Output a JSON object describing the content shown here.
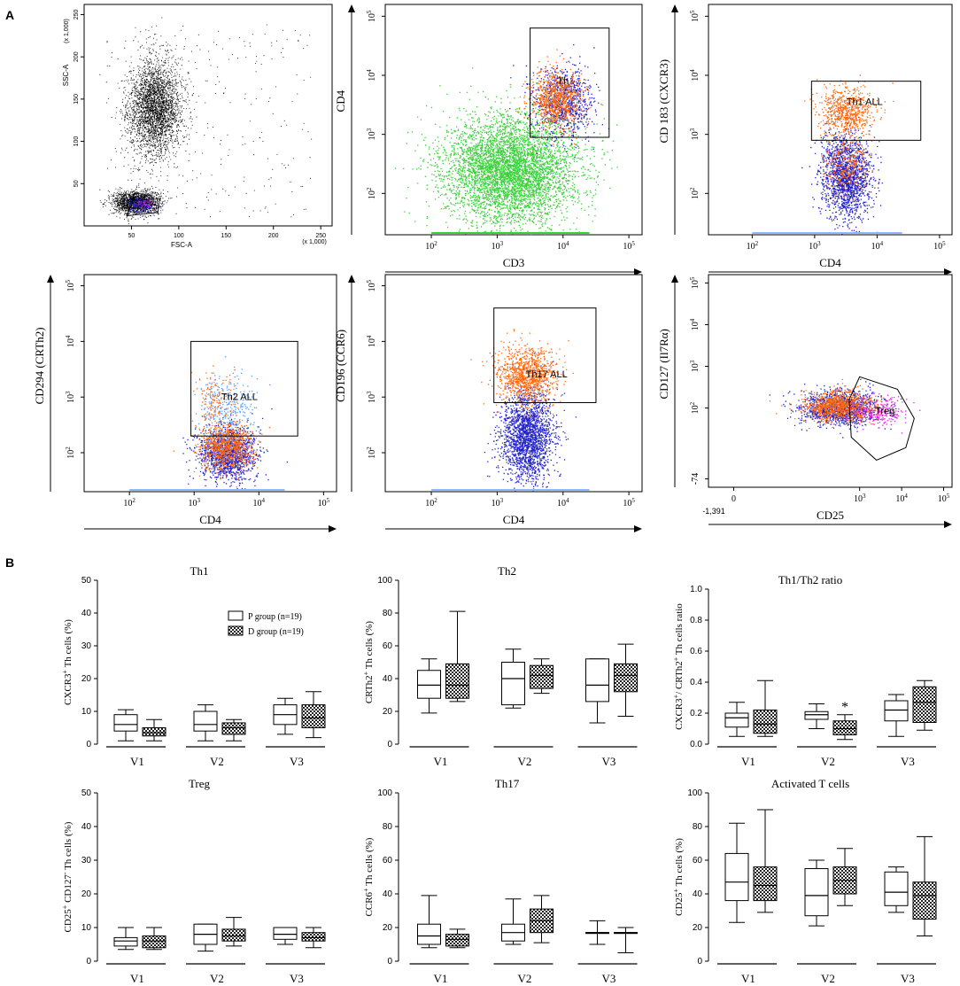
{
  "panel_labels": {
    "a": "A",
    "b": "B"
  },
  "colors": {
    "black": "#000000",
    "green": "#39d139",
    "blue": "#2222cc",
    "orange": "#ff6a10",
    "light_blue": "#5aa0ff",
    "magenta": "#e020e0"
  },
  "chart_data": [
    {
      "type": "scatter",
      "id": "fsc-ssc",
      "xlabel": "FSC-A",
      "ylabel": "SSC-A",
      "x_multiplier": "(x 1,000)",
      "y_multiplier": "(x 1,000)",
      "xlim": [
        0,
        262
      ],
      "ylim": [
        0,
        262
      ],
      "x_ticks": [
        "50",
        "100",
        "150",
        "200",
        "250"
      ],
      "y_ticks": [
        "50",
        "100",
        "150",
        "200",
        "250"
      ],
      "populations": [
        {
          "color": "black",
          "x_center": 75,
          "y_center": 140,
          "n": 3400
        },
        {
          "color": "black",
          "x_center": 55,
          "y_center": 28,
          "n": 1800
        },
        {
          "color": "blue",
          "x_center": 60,
          "y_center": 25,
          "n": 250
        },
        {
          "color": "magenta",
          "x_center": 62,
          "y_center": 28,
          "n": 60
        }
      ],
      "gates": [
        {
          "label": "",
          "shape": "polygon"
        }
      ]
    },
    {
      "type": "scatter",
      "id": "cd3-cd4",
      "scale": "log",
      "xlabel": "CD3",
      "ylabel": "CD4",
      "xlim": [
        1.3,
        5.2
      ],
      "ylim": [
        1.3,
        5.2
      ],
      "tick_labels": [
        "10",
        "10",
        "10",
        "10"
      ],
      "tick_exponents": [
        "2",
        "3",
        "4",
        "5"
      ],
      "populations": [
        {
          "color": "green",
          "x_center": 3.2,
          "y_center": 2.4,
          "n": 5000
        },
        {
          "color": "blue",
          "x_center": 4.0,
          "y_center": 3.55,
          "n": 900
        },
        {
          "color": "orange",
          "x_center": 3.9,
          "y_center": 3.6,
          "n": 900
        }
      ],
      "gates": [
        {
          "label": "Th",
          "x": [
            3.5,
            4.7
          ],
          "y": [
            2.95,
            4.8
          ]
        }
      ]
    },
    {
      "type": "scatter",
      "id": "cd4-cd183",
      "scale": "log",
      "xlabel": "CD4",
      "ylabel": "CD 183 (CXCR3)",
      "xlim": [
        1.3,
        5.2
      ],
      "ylim": [
        1.3,
        5.2
      ],
      "tick_labels": [
        "10",
        "10",
        "10",
        "10"
      ],
      "tick_exponents": [
        "2",
        "3",
        "4",
        "5"
      ],
      "populations": [
        {
          "color": "blue",
          "x_center": 3.5,
          "y_center": 2.3,
          "n": 1700
        },
        {
          "color": "orange",
          "x_center": 3.5,
          "y_center": 2.5,
          "n": 300
        },
        {
          "color": "orange",
          "x_center": 3.5,
          "y_center": 3.4,
          "n": 700
        }
      ],
      "gates": [
        {
          "label": "Th1 ALL",
          "x": [
            2.95,
            4.7
          ],
          "y": [
            2.9,
            3.9
          ]
        }
      ]
    },
    {
      "type": "scatter",
      "id": "cd4-cd294",
      "scale": "log",
      "xlabel": "CD4",
      "ylabel": "CD294 (CRTh2)",
      "xlim": [
        1.3,
        5.2
      ],
      "ylim": [
        1.3,
        5.2
      ],
      "tick_labels": [
        "10",
        "10",
        "10",
        "10"
      ],
      "tick_exponents": [
        "2",
        "3",
        "4",
        "5"
      ],
      "populations": [
        {
          "color": "blue",
          "x_center": 3.5,
          "y_center": 2.0,
          "n": 1400
        },
        {
          "color": "orange",
          "x_center": 3.5,
          "y_center": 2.1,
          "n": 900
        },
        {
          "color": "light_blue",
          "x_center": 3.5,
          "y_center": 2.8,
          "n": 300
        },
        {
          "color": "orange",
          "x_center": 3.3,
          "y_center": 2.9,
          "n": 150
        }
      ],
      "gates": [
        {
          "label": "Th2 ALL",
          "x": [
            2.95,
            4.6
          ],
          "y": [
            2.3,
            4.0
          ]
        }
      ]
    },
    {
      "type": "scatter",
      "id": "cd4-cd196",
      "scale": "log",
      "xlabel": "CD4",
      "ylabel": "CD196 (CCR6)",
      "xlim": [
        1.3,
        5.2
      ],
      "ylim": [
        1.3,
        5.2
      ],
      "tick_labels": [
        "10",
        "10",
        "10",
        "10"
      ],
      "tick_exponents": [
        "2",
        "3",
        "4",
        "5"
      ],
      "populations": [
        {
          "color": "blue",
          "x_center": 3.45,
          "y_center": 2.3,
          "n": 2000
        },
        {
          "color": "orange",
          "x_center": 3.45,
          "y_center": 3.4,
          "n": 1100
        }
      ],
      "gates": [
        {
          "label": "Th17 ALL",
          "x": [
            2.95,
            4.5
          ],
          "y": [
            2.9,
            4.6
          ]
        }
      ]
    },
    {
      "type": "scatter",
      "id": "cd25-cd127",
      "scale": "biexponential",
      "xlabel": "CD25",
      "ylabel": "CD127 (Il7Rα)",
      "xlim": [
        -0.6,
        5.2
      ],
      "ylim": [
        0.1,
        5.2
      ],
      "x_tick_labels": [
        "0",
        "10",
        "10",
        "10"
      ],
      "x_tick_exponents": [
        "",
        "3",
        "4",
        "5"
      ],
      "x_min_label": "-1,391",
      "y_tick_labels": [
        "-74",
        "10",
        "10",
        "10",
        "10"
      ],
      "y_tick_exponents": [
        "",
        "2",
        "3",
        "4",
        "5"
      ],
      "populations": [
        {
          "color": "blue",
          "x_center": 2.5,
          "y_center": 2.0,
          "n": 1300
        },
        {
          "color": "orange",
          "x_center": 2.5,
          "y_center": 2.05,
          "n": 1000
        },
        {
          "color": "magenta",
          "x_center": 3.4,
          "y_center": 1.9,
          "n": 250
        }
      ],
      "gates": [
        {
          "label": "Treg",
          "shape": "polygon"
        }
      ]
    },
    {
      "type": "box",
      "id": "th1",
      "title": "Th1",
      "ylabel": "CXCR3+ Th cells (%)",
      "ylim": [
        0,
        50
      ],
      "y_ticks": [
        "0",
        "10",
        "20",
        "30",
        "40",
        "50"
      ],
      "categories": [
        "V1",
        "V2",
        "V3"
      ],
      "legend": [
        "P group (n=19)",
        "D group (n=19)"
      ],
      "series": [
        {
          "name": "P group (n=19)",
          "boxes": [
            [
              1,
              4,
              6,
              9,
              10.5
            ],
            [
              1,
              4,
              6,
              10,
              12
            ],
            [
              3,
              6,
              9,
              12,
              14
            ]
          ]
        },
        {
          "name": "D group (n=19)",
          "boxes": [
            [
              1,
              2.5,
              3.5,
              5,
              7.5
            ],
            [
              1,
              3,
              5,
              6.5,
              7.5
            ],
            [
              2,
              5,
              8,
              12,
              16
            ]
          ]
        }
      ]
    },
    {
      "type": "box",
      "id": "th2",
      "title": "Th2",
      "ylabel": "CRTh2+ Th cells (%)",
      "ylim": [
        0,
        100
      ],
      "y_ticks": [
        "0",
        "20",
        "40",
        "60",
        "80",
        "100"
      ],
      "categories": [
        "V1",
        "V2",
        "V3"
      ],
      "series": [
        {
          "name": "P group (n=19)",
          "boxes": [
            [
              19,
              28,
              36,
              45,
              52
            ],
            [
              22,
              24,
              40,
              50,
              58
            ],
            [
              13,
              26,
              36,
              52,
              52
            ]
          ]
        },
        {
          "name": "D group (n=19)",
          "boxes": [
            [
              26,
              28,
              36,
              49,
              81
            ],
            [
              31,
              34,
              42,
              48,
              52
            ],
            [
              17,
              32,
              42,
              49,
              61
            ]
          ]
        }
      ]
    },
    {
      "type": "box",
      "id": "th1-th2-ratio",
      "title": "Th1/Th2 ratio",
      "ylabel": "CXCR3+/ CRTh2+ Th cells ratio",
      "ylim": [
        0,
        1.0
      ],
      "y_ticks": [
        "0.0",
        "0.2",
        "0.4",
        "0.6",
        "0.8",
        "1.0"
      ],
      "categories": [
        "V1",
        "V2",
        "V3"
      ],
      "annotations": [
        {
          "text": "*",
          "category": "V2",
          "series": "D group (n=19)"
        }
      ],
      "series": [
        {
          "name": "P group (n=19)",
          "boxes": [
            [
              0.05,
              0.11,
              0.17,
              0.2,
              0.27
            ],
            [
              0.1,
              0.16,
              0.19,
              0.21,
              0.26
            ],
            [
              0.05,
              0.15,
              0.22,
              0.28,
              0.32
            ]
          ]
        },
        {
          "name": "D group (n=19)",
          "boxes": [
            [
              0.05,
              0.07,
              0.13,
              0.22,
              0.41
            ],
            [
              0.03,
              0.06,
              0.1,
              0.15,
              0.19
            ],
            [
              0.09,
              0.14,
              0.27,
              0.37,
              0.41
            ]
          ]
        }
      ]
    },
    {
      "type": "box",
      "id": "treg",
      "title": "Treg",
      "ylabel": "CD25+ CD127- Th cells (%)",
      "ylim": [
        0,
        50
      ],
      "y_ticks": [
        "0",
        "10",
        "20",
        "30",
        "40",
        "50"
      ],
      "categories": [
        "V1",
        "V2",
        "V3"
      ],
      "series": [
        {
          "name": "P group (n=19)",
          "boxes": [
            [
              3.5,
              4.5,
              6,
              7,
              10
            ],
            [
              3,
              5,
              8,
              11,
              11
            ],
            [
              5,
              6.5,
              8,
              10,
              10
            ]
          ]
        },
        {
          "name": "D group (n=19)",
          "boxes": [
            [
              3.5,
              4,
              6,
              7.5,
              10
            ],
            [
              4.5,
              6,
              7.5,
              9.5,
              13
            ],
            [
              4,
              6,
              7,
              8.5,
              10
            ]
          ]
        }
      ]
    },
    {
      "type": "box",
      "id": "th17",
      "title": "Th17",
      "ylabel": "CCR6+ Th cells (%)",
      "ylim": [
        0,
        100
      ],
      "y_ticks": [
        "0",
        "20",
        "40",
        "60",
        "80",
        "100"
      ],
      "categories": [
        "V1",
        "V2",
        "V3"
      ],
      "series": [
        {
          "name": "P group (n=19)",
          "boxes": [
            [
              8,
              10,
              15,
              22,
              39
            ],
            [
              10,
              12,
              17,
              22,
              37
            ],
            [
              10,
              17,
              17,
              17,
              24
            ]
          ]
        },
        {
          "name": "D group (n=19)",
          "boxes": [
            [
              8,
              9,
              13,
              16,
              19
            ],
            [
              11,
              17,
              24,
              31,
              39
            ],
            [
              5,
              17,
              17,
              17,
              20
            ]
          ]
        }
      ]
    },
    {
      "type": "box",
      "id": "activated-t",
      "title": "Activated T cells",
      "ylabel": "CD25+ Th cells (%)",
      "ylim": [
        0,
        100
      ],
      "y_ticks": [
        "0",
        "20",
        "40",
        "60",
        "80",
        "100"
      ],
      "categories": [
        "V1",
        "V2",
        "V3"
      ],
      "series": [
        {
          "name": "P group (n=19)",
          "boxes": [
            [
              23,
              36,
              47,
              64,
              82
            ],
            [
              21,
              27,
              39,
              55,
              60
            ],
            [
              29,
              33,
              41,
              53,
              56
            ]
          ]
        },
        {
          "name": "D group (n=19)",
          "boxes": [
            [
              29,
              36,
              45,
              56,
              90
            ],
            [
              33,
              40,
              48,
              56,
              67
            ],
            [
              15,
              25,
              39,
              47,
              74
            ]
          ]
        }
      ]
    }
  ]
}
